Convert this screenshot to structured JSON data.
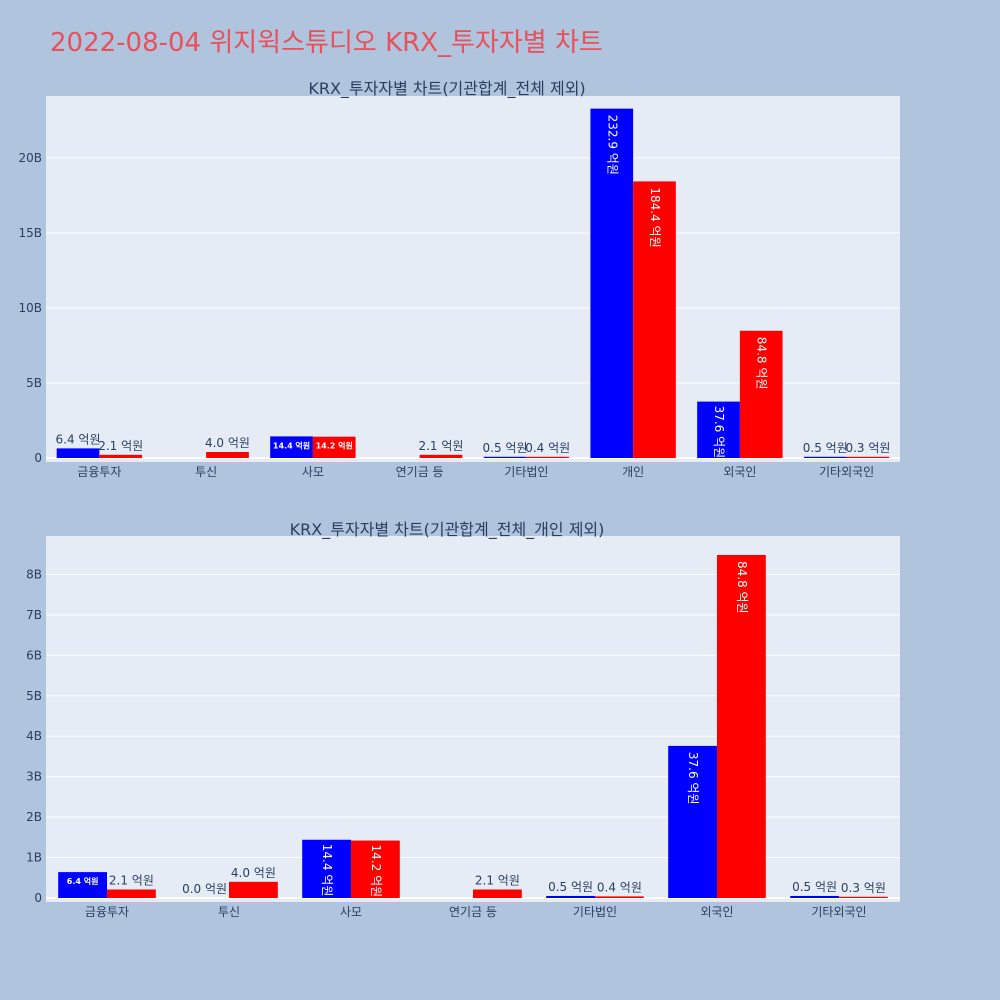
{
  "page": {
    "title": "2022-08-04 위지윅스튜디오 KRX_투자자별 차트"
  },
  "colors": {
    "background": "#b0c4de",
    "plot_bg": "#e5ecf6",
    "grid": "#ffffff",
    "buy": "#0000ff",
    "sell": "#ff0000",
    "title_red": "#e8505b",
    "text": "#2a3f5f"
  },
  "chart_data": [
    {
      "type": "bar",
      "title": "KRX_투자자별 차트(기관합계_전체 제외)",
      "categories": [
        "금융투자",
        "투신",
        "사모",
        "연기금 등",
        "기타법인",
        "개인",
        "외국인",
        "기타외국인"
      ],
      "series": [
        {
          "color": "#0000ff",
          "values": [
            0.64,
            null,
            1.44,
            null,
            0.05,
            23.29,
            3.76,
            0.05
          ],
          "labels": [
            "6.4 억원",
            "",
            "14.4 억원",
            "",
            "0.5 억원",
            "232.9 억원",
            "37.6 억원",
            "0.5 억원"
          ]
        },
        {
          "color": "#ff0000",
          "values": [
            0.21,
            0.4,
            1.42,
            0.21,
            0.04,
            18.44,
            8.48,
            0.03
          ],
          "labels": [
            "2.1 억원",
            "4.0 억원",
            "14.2 억원",
            "2.1 억원",
            "0.4 억원",
            "184.4 억원",
            "84.8 억원",
            "0.3 억원"
          ]
        }
      ],
      "ylim": [
        0,
        24
      ],
      "yticks": [
        0,
        5,
        10,
        15,
        20
      ],
      "ytick_labels": [
        "0",
        "5B",
        "10B",
        "15B",
        "20B"
      ],
      "grid": true
    },
    {
      "type": "bar",
      "title": "KRX_투자자별 차트(기관합계_전체_개인 제외)",
      "categories": [
        "금융투자",
        "투신",
        "사모",
        "연기금 등",
        "기타법인",
        "외국인",
        "기타외국인"
      ],
      "series": [
        {
          "color": "#0000ff",
          "values": [
            0.64,
            0.0,
            1.44,
            null,
            0.05,
            3.76,
            0.05
          ],
          "labels": [
            "6.4 억원",
            "0.0 억원",
            "14.4 억원",
            "",
            "0.5 억원",
            "37.6 억원",
            "0.5 억원"
          ]
        },
        {
          "color": "#ff0000",
          "values": [
            0.21,
            0.4,
            1.42,
            0.21,
            0.04,
            8.48,
            0.03
          ],
          "labels": [
            "2.1 억원",
            "4.0 억원",
            "14.2 억원",
            "2.1 억원",
            "0.4 억원",
            "84.8 억원",
            "0.3 억원"
          ]
        }
      ],
      "ylim": [
        0,
        8.9
      ],
      "yticks": [
        0,
        1,
        2,
        3,
        4,
        5,
        6,
        7,
        8
      ],
      "ytick_labels": [
        "0",
        "1B",
        "2B",
        "3B",
        "4B",
        "5B",
        "6B",
        "7B",
        "8B"
      ],
      "grid": true
    }
  ]
}
